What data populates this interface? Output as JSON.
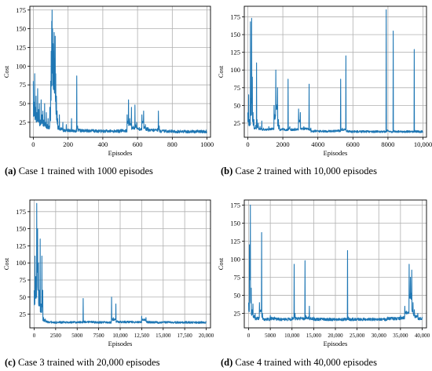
{
  "charts": [
    {
      "id": "a",
      "caption_letter": "(a)",
      "caption_text": "Case 1 trained with 1000 episodes",
      "chart_data": {
        "type": "line",
        "xlabel": "Episodes",
        "ylabel": "Cost",
        "xlim": [
          -20,
          1020
        ],
        "ylim": [
          5,
          180
        ],
        "xticks": [
          0,
          200,
          400,
          600,
          800,
          1000
        ],
        "xtick_labels": [
          "0",
          "200",
          "400",
          "600",
          "800",
          "1000"
        ],
        "yticks": [
          25,
          50,
          75,
          100,
          125,
          150,
          175
        ],
        "ytick_labels": [
          "25",
          "50",
          "75",
          "100",
          "125",
          "150",
          "175"
        ],
        "grid": true,
        "color": "#1f77b4",
        "baseline": 12,
        "noise": 4,
        "series": [
          {
            "points": [
              [
                0,
                80
              ],
              [
                5,
                52
              ],
              [
                8,
                90
              ],
              [
                12,
                45
              ],
              [
                16,
                60
              ],
              [
                20,
                38
              ],
              [
                25,
                70
              ],
              [
                30,
                42
              ],
              [
                35,
                50
              ],
              [
                40,
                28
              ],
              [
                45,
                55
              ],
              [
                50,
                35
              ],
              [
                55,
                40
              ],
              [
                60,
                28
              ],
              [
                65,
                50
              ],
              [
                70,
                25
              ],
              [
                75,
                38
              ],
              [
                80,
                22
              ],
              [
                85,
                30
              ],
              [
                90,
                20
              ],
              [
                95,
                45
              ],
              [
                100,
                80
              ],
              [
                103,
                120
              ],
              [
                106,
                160
              ],
              [
                108,
                175
              ],
              [
                111,
                150
              ],
              [
                114,
                130
              ],
              [
                117,
                120
              ],
              [
                120,
                145
              ],
              [
                123,
                110
              ],
              [
                126,
                140
              ],
              [
                129,
                90
              ],
              [
                133,
                60
              ],
              [
                137,
                40
              ],
              [
                140,
                30
              ],
              [
                145,
                20
              ],
              [
                150,
                35
              ],
              [
                160,
                18
              ],
              [
                170,
                25
              ],
              [
                180,
                15
              ],
              [
                190,
                22
              ],
              [
                200,
                15
              ],
              [
                220,
                30
              ],
              [
                240,
                14
              ],
              [
                250,
                87
              ],
              [
                255,
                20
              ],
              [
                270,
                15
              ],
              [
                300,
                14
              ],
              [
                350,
                14
              ],
              [
                400,
                13
              ],
              [
                450,
                13
              ],
              [
                500,
                14
              ],
              [
                540,
                35
              ],
              [
                548,
                55
              ],
              [
                555,
                30
              ],
              [
                565,
                45
              ],
              [
                575,
                20
              ],
              [
                585,
                48
              ],
              [
                595,
                25
              ],
              [
                610,
                18
              ],
              [
                625,
                35
              ],
              [
                635,
                40
              ],
              [
                645,
                22
              ],
              [
                660,
                18
              ],
              [
                680,
                15
              ],
              [
                700,
                16
              ],
              [
                720,
                40
              ],
              [
                725,
                20
              ],
              [
                760,
                13
              ],
              [
                800,
                13
              ],
              [
                850,
                12
              ],
              [
                900,
                12
              ],
              [
                950,
                13
              ],
              [
                1000,
                12
              ]
            ]
          }
        ]
      }
    },
    {
      "id": "b",
      "caption_letter": "(b)",
      "caption_text": "Case 2 trained with 10,000 episodes",
      "chart_data": {
        "type": "line",
        "xlabel": "Episodes",
        "ylabel": "Cost",
        "xlim": [
          -200,
          10200
        ],
        "ylim": [
          5,
          190
        ],
        "xticks": [
          0,
          2000,
          4000,
          6000,
          8000,
          10000
        ],
        "xtick_labels": [
          "0",
          "2000",
          "4000",
          "6000",
          "8000",
          "10,000"
        ],
        "yticks": [
          25,
          50,
          75,
          100,
          125,
          150,
          175
        ],
        "ytick_labels": [
          "25",
          "50",
          "75",
          "100",
          "125",
          "150",
          "175"
        ],
        "grid": true,
        "color": "#1f77b4",
        "baseline": 12,
        "noise": 3,
        "series": [
          {
            "points": [
              [
                0,
                40
              ],
              [
                50,
                65
              ],
              [
                100,
                30
              ],
              [
                150,
                168
              ],
              [
                180,
                60
              ],
              [
                220,
                173
              ],
              [
                260,
                90
              ],
              [
                300,
                40
              ],
              [
                350,
                30
              ],
              [
                450,
                22
              ],
              [
                500,
                110
              ],
              [
                530,
                30
              ],
              [
                600,
                25
              ],
              [
                700,
                20
              ],
              [
                800,
                28
              ],
              [
                900,
                18
              ],
              [
                1200,
                20
              ],
              [
                1500,
                50
              ],
              [
                1600,
                100
              ],
              [
                1700,
                75
              ],
              [
                1750,
                30
              ],
              [
                1800,
                22
              ],
              [
                2000,
                18
              ],
              [
                2300,
                87
              ],
              [
                2400,
                20
              ],
              [
                2700,
                18
              ],
              [
                2900,
                45
              ],
              [
                3000,
                40
              ],
              [
                3200,
                20
              ],
              [
                3500,
                80
              ],
              [
                3600,
                18
              ],
              [
                4000,
                14
              ],
              [
                4500,
                14
              ],
              [
                5000,
                15
              ],
              [
                5300,
                87
              ],
              [
                5400,
                18
              ],
              [
                5600,
                120
              ],
              [
                5700,
                15
              ],
              [
                6000,
                13
              ],
              [
                7000,
                13
              ],
              [
                7600,
                13
              ],
              [
                7900,
                185
              ],
              [
                8000,
                15
              ],
              [
                8200,
                13
              ],
              [
                8300,
                155
              ],
              [
                8400,
                14
              ],
              [
                9000,
                13
              ],
              [
                9500,
                129
              ],
              [
                9600,
                14
              ],
              [
                10000,
                13
              ]
            ]
          }
        ]
      }
    },
    {
      "id": "c",
      "caption_letter": "(c)",
      "caption_text": "Case 3 trained with 20,000 episodes",
      "chart_data": {
        "type": "line",
        "xlabel": "Episodes",
        "ylabel": "Cost",
        "xlim": [
          -500,
          20500
        ],
        "ylim": [
          5,
          192
        ],
        "xticks": [
          0,
          2500,
          5000,
          7500,
          10000,
          12500,
          15000,
          17500,
          20000
        ],
        "xtick_labels": [
          "0",
          "2500",
          "5000",
          "7500",
          "10,000",
          "12,500",
          "15,000",
          "17,500",
          "20,000"
        ],
        "yticks": [
          25,
          50,
          75,
          100,
          125,
          150,
          175
        ],
        "ytick_labels": [
          "25",
          "50",
          "75",
          "100",
          "125",
          "150",
          "175"
        ],
        "grid": true,
        "color": "#1f77b4",
        "baseline": 12,
        "noise": 3,
        "series": [
          {
            "points": [
              [
                0,
                60
              ],
              [
                100,
                110
              ],
              [
                200,
                80
              ],
              [
                300,
                187
              ],
              [
                400,
                150
              ],
              [
                500,
                100
              ],
              [
                600,
                60
              ],
              [
                700,
                135
              ],
              [
                800,
                40
              ],
              [
                900,
                110
              ],
              [
                1000,
                60
              ],
              [
                1100,
                20
              ],
              [
                1300,
                18
              ],
              [
                1500,
                15
              ],
              [
                2000,
                14
              ],
              [
                3000,
                13
              ],
              [
                4000,
                13
              ],
              [
                5000,
                14
              ],
              [
                5700,
                48
              ],
              [
                5800,
                15
              ],
              [
                7000,
                14
              ],
              [
                8000,
                13
              ],
              [
                9000,
                50
              ],
              [
                9200,
                20
              ],
              [
                9500,
                40
              ],
              [
                9700,
                15
              ],
              [
                11000,
                14
              ],
              [
                12500,
                22
              ],
              [
                13000,
                20
              ],
              [
                13500,
                14
              ],
              [
                15000,
                13
              ],
              [
                17500,
                13
              ],
              [
                20000,
                13
              ]
            ]
          }
        ]
      }
    },
    {
      "id": "d",
      "caption_letter": "(d)",
      "caption_text": "Case 4 trained with 40,000 episodes",
      "chart_data": {
        "type": "line",
        "xlabel": "Episodes",
        "ylabel": "Cost",
        "xlim": [
          -1000,
          41000
        ],
        "ylim": [
          5,
          182
        ],
        "xticks": [
          0,
          5000,
          10000,
          15000,
          20000,
          25000,
          30000,
          35000,
          40000
        ],
        "xtick_labels": [
          "0",
          "5000",
          "10,000",
          "15,000",
          "20,000",
          "25,000",
          "30,000",
          "35,000",
          "40,000"
        ],
        "yticks": [
          25,
          50,
          75,
          100,
          125,
          150,
          175
        ],
        "ytick_labels": [
          "25",
          "50",
          "75",
          "100",
          "125",
          "150",
          "175"
        ],
        "grid": true,
        "color": "#1f77b4",
        "baseline": 14,
        "noise": 4,
        "series": [
          {
            "points": [
              [
                0,
                40
              ],
              [
                200,
                120
              ],
              [
                400,
                175
              ],
              [
                600,
                60
              ],
              [
                800,
                30
              ],
              [
                1000,
                38
              ],
              [
                1500,
                25
              ],
              [
                2000,
                20
              ],
              [
                2500,
                40
              ],
              [
                3000,
                137
              ],
              [
                3200,
                25
              ],
              [
                4000,
                18
              ],
              [
                5000,
                22
              ],
              [
                6000,
                20
              ],
              [
                8000,
                18
              ],
              [
                10000,
                20
              ],
              [
                10500,
                93
              ],
              [
                10700,
                25
              ],
              [
                12000,
                20
              ],
              [
                13000,
                98
              ],
              [
                13200,
                22
              ],
              [
                14000,
                35
              ],
              [
                15000,
                20
              ],
              [
                18000,
                18
              ],
              [
                20000,
                18
              ],
              [
                22800,
                112
              ],
              [
                23000,
                20
              ],
              [
                25000,
                18
              ],
              [
                30000,
                18
              ],
              [
                32000,
                20
              ],
              [
                35000,
                22
              ],
              [
                36000,
                35
              ],
              [
                37000,
                93
              ],
              [
                37300,
                75
              ],
              [
                37600,
                85
              ],
              [
                37900,
                40
              ],
              [
                38200,
                30
              ],
              [
                39000,
                25
              ],
              [
                40000,
                20
              ]
            ]
          }
        ]
      }
    }
  ]
}
